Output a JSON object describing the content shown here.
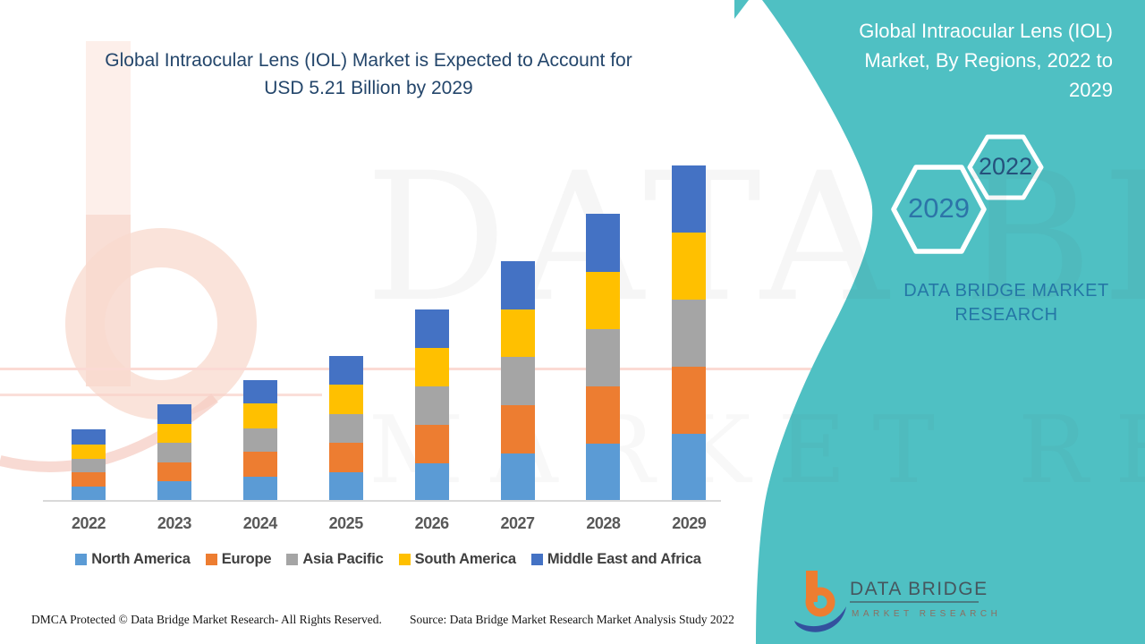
{
  "header": {
    "title_lines": [
      "Global Intraocular Lens (IOL) Market is Expected to Account for",
      "USD 5.21 Billion by 2029"
    ]
  },
  "side_panel": {
    "title_lines": [
      "Global Intraocular Lens (IOL)",
      "Market, By Regions, 2022 to",
      "2029"
    ],
    "hexagon_top_label": "2022",
    "hexagon_bottom_label": "2029",
    "brand_line1": "DATA BRIDGE MARKET",
    "brand_line2": "RESEARCH",
    "panel_color": "#4FC0C3"
  },
  "watermark": {
    "line1": "DATA BRIDGE",
    "line2": "MARKET RESEARCH"
  },
  "chart_data": {
    "type": "bar",
    "stacked": true,
    "title": "Global Intraocular Lens (IOL) Market is Expected to Account for USD 5.21 Billion by 2029",
    "subtitle": "Global Intraocular Lens (IOL) Market, By Regions, 2022 to 2029",
    "unit": "USD Billion",
    "categories": [
      "2022",
      "2023",
      "2024",
      "2025",
      "2026",
      "2027",
      "2028",
      "2029"
    ],
    "series": [
      {
        "name": "North America",
        "color": "#5B9BD5",
        "values": [
          0.22,
          0.3,
          0.38,
          0.45,
          0.59,
          0.74,
          0.89,
          1.04
        ]
      },
      {
        "name": "Europe",
        "color": "#ED7D31",
        "values": [
          0.22,
          0.3,
          0.38,
          0.45,
          0.59,
          0.75,
          0.89,
          1.04
        ]
      },
      {
        "name": "Asia Pacific",
        "color": "#A5A5A5",
        "values": [
          0.22,
          0.3,
          0.37,
          0.45,
          0.6,
          0.74,
          0.89,
          1.04
        ]
      },
      {
        "name": "South America",
        "color": "#FFC000",
        "values": [
          0.22,
          0.3,
          0.38,
          0.45,
          0.59,
          0.74,
          0.89,
          1.04
        ]
      },
      {
        "name": "Middle East and Africa",
        "color": "#4472C4",
        "values": [
          0.23,
          0.3,
          0.37,
          0.45,
          0.6,
          0.75,
          0.9,
          1.05
        ]
      }
    ],
    "totals": [
      1.11,
      1.5,
      1.88,
      2.25,
      2.97,
      3.72,
      4.46,
      5.21
    ],
    "ylim": [
      0,
      5.3
    ],
    "grid": false,
    "y_axis_visible": false,
    "legend_position": "bottom"
  },
  "footer": {
    "dmca": "DMCA Protected © Data Bridge Market Research- All Rights Reserved.",
    "source": "Source: Data Bridge Market Research Market Analysis Study 2022",
    "logo_line1": "DATA BRIDGE",
    "logo_line2": "MARKET RESEARCH"
  }
}
